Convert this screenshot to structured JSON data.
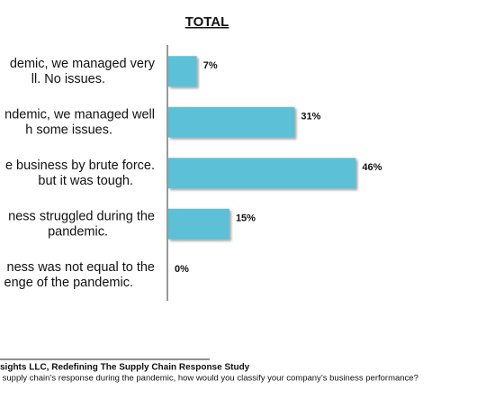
{
  "chart_data": {
    "type": "bar",
    "orientation": "horizontal",
    "title": "TOTAL",
    "categories": [
      [
        "demic, we managed very",
        "ll. No issues."
      ],
      [
        "ndemic, we managed well",
        "h some issues."
      ],
      [
        "e business by brute force.",
        "but it was tough."
      ],
      [
        "ness struggled during the",
        "pandemic."
      ],
      [
        "ness was not equal to the",
        "enge of the pandemic."
      ]
    ],
    "values": [
      7,
      31,
      46,
      15,
      0
    ],
    "value_labels": [
      "7%",
      "31%",
      "46%",
      "15%",
      "0%"
    ],
    "color": "#5bc0d6",
    "source": "sights LLC, Redefining The Supply Chain Response Study",
    "question": " supply chain’s response during the pandemic, how would you classify your company’s business performance?"
  }
}
